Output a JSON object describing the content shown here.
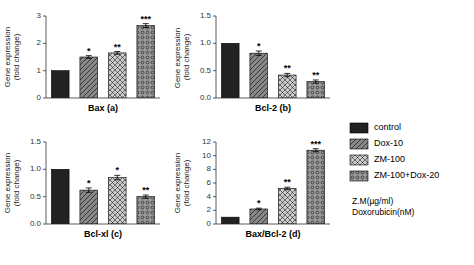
{
  "chart_data": [
    {
      "type": "bar",
      "xlabel": "Bax (a)",
      "ylabel": "Gene expression(fold change)",
      "categories": [
        "control",
        "Dox-10",
        "ZM-100",
        "ZM-100+Dox-20"
      ],
      "colors": [
        "#222222",
        "#888888",
        "#cccccc",
        "#999999"
      ],
      "values": [
        1.0,
        1.5,
        1.65,
        2.65
      ],
      "errors": [
        0.0,
        0.05,
        0.05,
        0.07
      ],
      "annotations": [
        null,
        "*",
        "**",
        "***"
      ],
      "ylim": [
        0,
        3
      ],
      "yticks": [
        0,
        1,
        2,
        3
      ],
      "grid": false,
      "tick_labels": "y"
    },
    {
      "type": "bar",
      "xlabel": "Bcl-2 (b)",
      "ylabel": "Gene expression (fold change)",
      "categories": [
        "control",
        "Dox-10",
        "ZM-100",
        "ZM-100+Dox-20"
      ],
      "colors": [
        "#222222",
        "#888888",
        "#cccccc",
        "#999999"
      ],
      "values": [
        1.0,
        0.82,
        0.42,
        0.3
      ],
      "errors": [
        0.0,
        0.04,
        0.03,
        0.03
      ],
      "annotations": [
        null,
        "*",
        "**",
        "**"
      ],
      "ylim": [
        0.0,
        1.5
      ],
      "yticks": [
        {
          "value": 0.0,
          "label": "0.0"
        },
        {
          "value": 0.5,
          "label": "0.5"
        },
        {
          "value": 1.0,
          "label": "1.0"
        },
        {
          "value": 1.5,
          "label": "1.5"
        }
      ],
      "grid": false,
      "tick_labels": "y"
    },
    {
      "type": "bar",
      "xlabel": "Bcl-xl  (c)",
      "ylabel": "Gene expression(fold change)",
      "categories": [
        "control",
        "Dox-10",
        "ZM-100",
        "ZM-100+Dox-20"
      ],
      "colors": [
        "#222222",
        "#888888",
        "#cccccc",
        "#999999"
      ],
      "values": [
        1.0,
        0.62,
        0.85,
        0.5
      ],
      "errors": [
        0.0,
        0.04,
        0.04,
        0.03
      ],
      "annotations": [
        null,
        "*",
        "*",
        "**"
      ],
      "ylim": [
        0.0,
        1.5
      ],
      "yticks": [
        {
          "value": 0.0,
          "label": "0.0"
        },
        {
          "value": 0.5,
          "label": "0.5"
        },
        {
          "value": 1.0,
          "label": "1.0"
        },
        {
          "value": 1.5,
          "label": "1.5"
        }
      ],
      "grid": false,
      "tick_labels": "y"
    },
    {
      "type": "bar",
      "xlabel": "Bax/Bcl-2  (d)",
      "ylabel": "Gene expression(fold change)",
      "categories": [
        "control",
        "Dox-10",
        "ZM-100",
        "ZM-100+Dox-20"
      ],
      "colors": [
        "#222222",
        "#888888",
        "#cccccc",
        "#999999"
      ],
      "values": [
        1.0,
        2.2,
        5.2,
        10.8
      ],
      "errors": [
        0.0,
        0.12,
        0.18,
        0.22
      ],
      "annotations": [
        null,
        "*",
        "**",
        "***"
      ],
      "ylim": [
        0,
        12
      ],
      "yticks": [
        0,
        2,
        4,
        6,
        8,
        10,
        12
      ],
      "grid": false,
      "tick_labels": "y",
      "legend": "right",
      "note": "Z.M(µg/ml)\nDoxorubicin(nM)"
    }
  ]
}
